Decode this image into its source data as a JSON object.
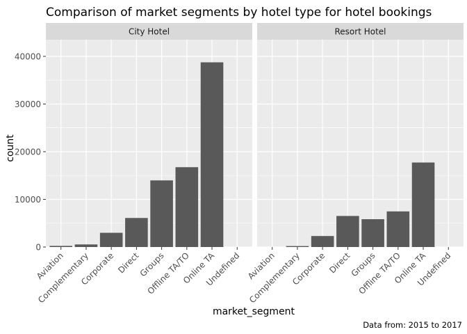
{
  "chart_data": {
    "type": "bar",
    "title": "Comparison of market segments by hotel type for hotel bookings",
    "xlabel": "market_segment",
    "ylabel": "count",
    "caption": "Data from: 2015 to 2017",
    "categories": [
      "Aviation",
      "Complementary",
      "Corporate",
      "Direct",
      "Groups",
      "Offline TA/TO",
      "Online TA",
      "Undefined"
    ],
    "ylim": [
      0,
      43500
    ],
    "yticks": [
      0,
      10000,
      20000,
      30000,
      40000
    ],
    "ytick_labels": [
      "0",
      "10000",
      "20000",
      "30000",
      "40000"
    ],
    "grid": true,
    "facets": [
      {
        "name": "City Hotel",
        "values": [
          237,
          542,
          2986,
          6093,
          13975,
          16747,
          38748,
          2
        ]
      },
      {
        "name": "Resort Hotel",
        "values": [
          0,
          201,
          2309,
          6513,
          5836,
          7472,
          17729,
          0
        ]
      }
    ]
  },
  "colors": {
    "panel_background": "#ebebeb",
    "strip_background": "#d9d9d9",
    "gridline": "#ffffff",
    "bar": "#595959",
    "tick": "#333333"
  }
}
